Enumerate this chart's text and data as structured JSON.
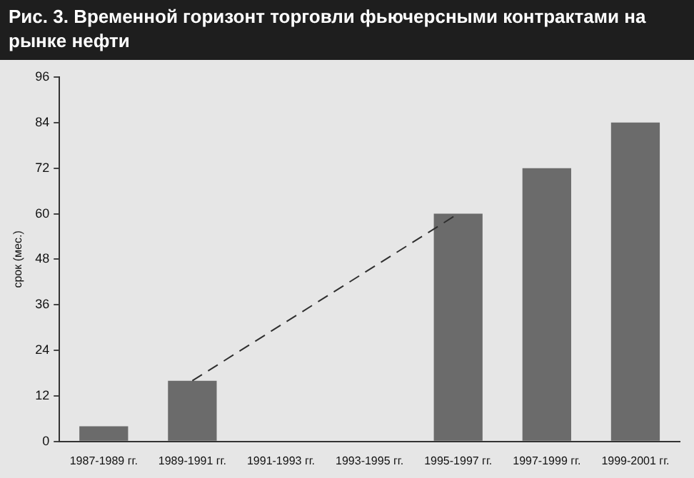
{
  "chart_data": {
    "type": "bar",
    "title": "Рис. 3. Временной горизонт торговли фьючерсными контрактами на рынке нефти",
    "ylabel": "срок (мес.)",
    "categories": [
      "1987-1989 гг.",
      "1989-1991 гг.",
      "1991-1993 гг.",
      "1993-1995 гг.",
      "1995-1997 гг.",
      "1997-1999 гг.",
      "1999-2001 гг."
    ],
    "series": [
      {
        "color": "#6b6b6b",
        "values": [
          4,
          16,
          null,
          null,
          60,
          72,
          84
        ]
      },
      {
        "type": "line",
        "color": "#2e2e2e",
        "line_style": "dashed",
        "values": [
          null,
          16,
          null,
          null,
          60,
          null,
          null
        ]
      }
    ],
    "ylim": [
      0,
      96
    ],
    "yticks": [
      0,
      12,
      24,
      36,
      48,
      60,
      72,
      84,
      96
    ],
    "grid": false,
    "legend": false
  }
}
